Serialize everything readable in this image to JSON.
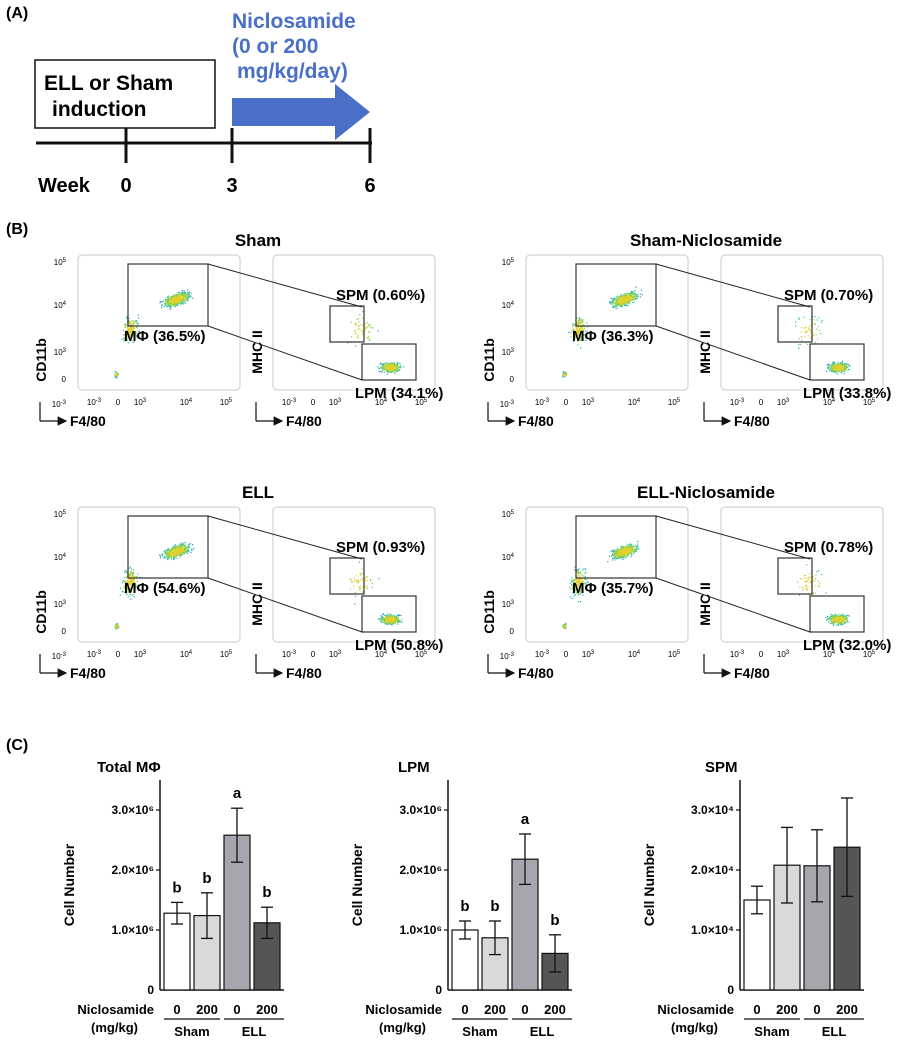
{
  "panel_a": {
    "label": "(A)",
    "drug_lines": [
      "Niclosamide",
      "(0 or 200",
      "mg/kg/day)"
    ],
    "induction_lines": [
      "ELL or Sham",
      "induction"
    ],
    "week_label": "Week",
    "ticks": [
      "0",
      "3",
      "6"
    ],
    "arrow_color": "#4a6fc6"
  },
  "panel_b": {
    "label": "(B)",
    "groups": [
      {
        "title": "Sham",
        "mphi": "MΦ (36.5%)",
        "spm": "SPM (0.60%)",
        "lpm": "LPM (34.1%)"
      },
      {
        "title": "Sham-Niclosamide",
        "mphi": "MΦ (36.3%)",
        "spm": "SPM (0.70%)",
        "lpm": "LPM (33.8%)"
      },
      {
        "title": "ELL",
        "mphi": "MΦ (54.6%)",
        "spm": "SPM (0.93%)",
        "lpm": "LPM (50.8%)"
      },
      {
        "title": "ELL-Niclosamide",
        "mphi": "MΦ (35.7%)",
        "spm": "SPM (0.78%)",
        "lpm": "LPM (32.0%)"
      }
    ],
    "y1_label": "CD11b",
    "y2_label": "MHC II",
    "x_label": "F4/80",
    "x_ticks": [
      "10-3",
      "0",
      "103",
      "104",
      "105"
    ],
    "y_ticks": [
      "105",
      "104",
      "103",
      "0",
      "10-3"
    ]
  },
  "panel_c": {
    "label": "(C)",
    "ylabel": "Cell Number",
    "xrow_label": [
      "Niclosamide",
      "(mg/kg)"
    ],
    "dose_labels": [
      "0",
      "200",
      "0",
      "200"
    ],
    "group_labels": [
      "Sham",
      "ELL"
    ],
    "bar_colors": [
      "#ffffff",
      "#d9d9d9",
      "#a6a6ad",
      "#555555"
    ]
  },
  "chart_data": [
    {
      "type": "bar",
      "title": "Total MΦ",
      "ylabel": "Cell Number",
      "categories": [
        "Sham 0",
        "Sham 200",
        "ELL 0",
        "ELL 200"
      ],
      "values": [
        1280000,
        1240000,
        2580000,
        1120000
      ],
      "errors": [
        180000,
        380000,
        450000,
        260000
      ],
      "letters": [
        "b",
        "b",
        "a",
        "b"
      ],
      "ylim": [
        0,
        3500000
      ],
      "yticks": [
        1000000,
        2000000,
        3000000
      ],
      "ytick_labels": [
        "1.0×10⁶",
        "2.0×10⁶",
        "3.0×10⁶"
      ]
    },
    {
      "type": "bar",
      "title": "LPM",
      "ylabel": "Cell Number",
      "categories": [
        "Sham 0",
        "Sham 200",
        "ELL 0",
        "ELL 200"
      ],
      "values": [
        1000000,
        870000,
        2180000,
        610000
      ],
      "errors": [
        150000,
        280000,
        420000,
        310000
      ],
      "letters": [
        "b",
        "b",
        "a",
        "b"
      ],
      "ylim": [
        0,
        3500000
      ],
      "yticks": [
        1000000,
        2000000,
        3000000
      ],
      "ytick_labels": [
        "1.0×10⁶",
        "2.0×10⁶",
        "3.0×10⁶"
      ]
    },
    {
      "type": "bar",
      "title": "SPM",
      "ylabel": "Cell Number",
      "categories": [
        "Sham 0",
        "Sham 200",
        "ELL 0",
        "ELL 200"
      ],
      "values": [
        15000,
        20800,
        20700,
        23800
      ],
      "errors": [
        2300,
        6300,
        6000,
        8200
      ],
      "letters": [
        "",
        "",
        "",
        ""
      ],
      "ylim": [
        0,
        35000
      ],
      "yticks": [
        10000,
        20000,
        30000
      ],
      "ytick_labels": [
        "1.0×10⁴",
        "2.0×10⁴",
        "3.0×10⁴"
      ]
    }
  ]
}
